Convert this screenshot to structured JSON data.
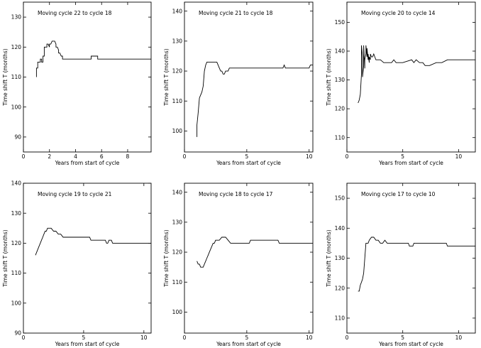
{
  "chart_data": [
    {
      "type": "line",
      "title": "Moving cycle 22 to cycle 18",
      "xlabel": "Years from start of cycle",
      "ylabel": "Time shift T (months)",
      "xlim": [
        0,
        9.8
      ],
      "ylim": [
        85,
        135
      ],
      "xticks": [
        0,
        2,
        4,
        6,
        8
      ],
      "yticks": [
        90,
        100,
        110,
        120,
        130
      ],
      "grid": false,
      "x": [
        1.0,
        1.0,
        1.1,
        1.1,
        1.2,
        1.3,
        1.3,
        1.4,
        1.4,
        1.5,
        1.5,
        1.6,
        1.6,
        1.7,
        1.8,
        1.8,
        1.9,
        2.0,
        2.0,
        2.1,
        2.2,
        2.4,
        2.5,
        2.5,
        2.6,
        2.7,
        2.7,
        2.8,
        2.9,
        3.0,
        3.0,
        5.2,
        5.2,
        5.7,
        5.7,
        9.8
      ],
      "y": [
        110,
        113,
        113,
        115,
        115,
        115,
        116,
        116,
        115,
        115,
        117,
        117,
        120,
        120,
        120,
        121,
        121,
        120,
        121,
        121,
        122,
        122,
        121,
        120,
        120,
        119,
        118,
        118,
        117,
        117,
        116,
        116,
        117,
        117,
        116,
        116
      ]
    },
    {
      "type": "line",
      "title": "Moving cycle 21 to cycle 18",
      "xlabel": "Years from start of cycle",
      "ylabel": "Time shift T (months)",
      "xlim": [
        0,
        10.3
      ],
      "ylim": [
        93,
        143
      ],
      "xticks": [
        0,
        5,
        10
      ],
      "yticks": [
        100,
        110,
        120,
        130,
        140
      ],
      "grid": false,
      "x": [
        1.0,
        1.0,
        1.1,
        1.2,
        1.3,
        1.4,
        1.5,
        1.6,
        1.7,
        1.8,
        2.6,
        2.7,
        2.8,
        2.9,
        3.0,
        3.1,
        3.2,
        3.3,
        3.4,
        3.5,
        3.6,
        3.7,
        7.9,
        8.0,
        8.1,
        8.2,
        10.0,
        10.1,
        10.3
      ],
      "y": [
        98,
        102,
        106,
        111,
        112,
        113,
        115,
        120,
        122,
        123,
        123,
        122,
        121,
        120,
        120,
        119,
        119,
        120,
        120,
        120,
        121,
        121,
        121,
        122,
        121,
        121,
        121,
        122,
        122
      ]
    },
    {
      "type": "line",
      "title": "Moving cycle 20 to cycle 14",
      "xlabel": "Years from start of cycle",
      "ylabel": "Time shift T (months)",
      "xlim": [
        0,
        11.5
      ],
      "ylim": [
        105,
        157
      ],
      "xticks": [
        0,
        5,
        10
      ],
      "yticks": [
        110,
        120,
        130,
        140,
        150
      ],
      "grid": false,
      "x": [
        1.0,
        1.1,
        1.2,
        1.3,
        1.3,
        1.4,
        1.4,
        1.5,
        1.5,
        1.6,
        1.6,
        1.7,
        1.7,
        1.8,
        1.8,
        1.9,
        1.9,
        2.0,
        2.0,
        2.1,
        2.1,
        2.2,
        2.3,
        2.4,
        2.5,
        2.6,
        2.7,
        3.0,
        3.3,
        3.6,
        4.0,
        4.2,
        4.4,
        5.0,
        5.8,
        6.0,
        6.2,
        6.5,
        6.8,
        7.0,
        7.4,
        8.0,
        8.5,
        9.0,
        9.5,
        10.0,
        11.5
      ],
      "y": [
        122,
        123,
        125,
        132,
        142,
        138,
        131,
        135,
        142,
        134,
        137,
        139,
        142,
        138,
        141,
        137,
        139,
        136,
        138,
        137,
        139,
        138,
        138,
        139,
        138,
        137,
        137,
        137,
        136,
        136,
        136,
        137,
        136,
        136,
        137,
        136,
        137,
        136,
        136,
        135,
        135,
        136,
        136,
        137,
        137,
        137,
        137
      ]
    },
    {
      "type": "line",
      "title": "Moving cycle 19 to cycle 21",
      "xlabel": "Years from start of cycle",
      "ylabel": "Time shift T (months)",
      "xlim": [
        0,
        10.6
      ],
      "ylim": [
        90,
        140
      ],
      "xticks": [
        0,
        5,
        10
      ],
      "yticks": [
        90,
        100,
        110,
        120,
        130,
        140
      ],
      "grid": false,
      "x": [
        1.0,
        1.1,
        1.2,
        1.3,
        1.4,
        1.5,
        1.6,
        1.7,
        1.8,
        1.9,
        2.0,
        2.3,
        2.5,
        2.7,
        2.9,
        3.1,
        3.3,
        5.0,
        5.5,
        5.6,
        6.5,
        6.8,
        6.9,
        7.0,
        7.1,
        7.3,
        7.4,
        10.6
      ],
      "y": [
        116,
        117,
        118,
        119,
        120,
        121,
        122,
        123,
        124,
        124,
        125,
        125,
        124,
        124,
        123,
        123,
        122,
        122,
        122,
        121,
        121,
        121,
        120,
        120,
        121,
        121,
        120,
        120
      ]
    },
    {
      "type": "line",
      "title": "Moving cycle 18 to cycle 17",
      "xlabel": "Years from start of cycle",
      "ylabel": "Time shift T (months)",
      "xlim": [
        0,
        10.3
      ],
      "ylim": [
        93,
        143
      ],
      "xticks": [
        0,
        5,
        10
      ],
      "yticks": [
        100,
        110,
        120,
        130,
        140
      ],
      "grid": false,
      "x": [
        1.0,
        1.1,
        1.2,
        1.3,
        1.5,
        1.6,
        1.7,
        1.8,
        1.9,
        2.0,
        2.1,
        2.2,
        2.3,
        2.4,
        2.5,
        2.6,
        2.8,
        3.0,
        3.3,
        3.5,
        3.7,
        5.2,
        5.3,
        7.5,
        7.6,
        10.3
      ],
      "y": [
        117,
        116,
        116,
        115,
        115,
        116,
        117,
        118,
        119,
        120,
        121,
        122,
        123,
        123,
        124,
        124,
        124,
        125,
        125,
        124,
        123,
        123,
        124,
        124,
        123,
        123
      ]
    },
    {
      "type": "line",
      "title": "Moving cycle 17 to cycle 10",
      "xlabel": "Years from start of cycle",
      "ylabel": "Time shift T (months)",
      "xlim": [
        0,
        11.5
      ],
      "ylim": [
        105,
        155
      ],
      "xticks": [
        0,
        5,
        10
      ],
      "yticks": [
        110,
        120,
        130,
        140,
        150
      ],
      "grid": false,
      "x": [
        1.0,
        1.1,
        1.2,
        1.3,
        1.4,
        1.5,
        1.6,
        1.7,
        1.8,
        1.9,
        2.0,
        2.2,
        2.4,
        2.6,
        2.8,
        3.0,
        3.2,
        3.4,
        3.6,
        3.8,
        4.0,
        5.0,
        5.5,
        5.6,
        5.9,
        6.0,
        7.0,
        8.9,
        9.0,
        11.5
      ],
      "y": [
        119,
        119,
        121,
        122,
        123,
        125,
        130,
        135,
        135,
        135,
        136,
        137,
        137,
        136,
        136,
        135,
        135,
        136,
        135,
        135,
        135,
        135,
        135,
        134,
        134,
        135,
        135,
        135,
        134,
        134
      ]
    }
  ]
}
